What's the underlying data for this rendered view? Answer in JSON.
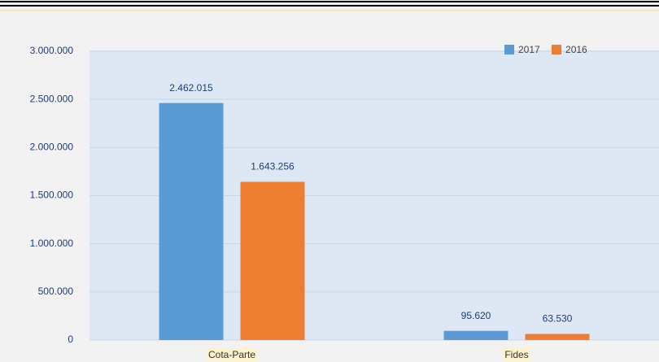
{
  "chart_data": {
    "type": "bar",
    "categories": [
      "Cota-Parte",
      "Fides"
    ],
    "series": [
      {
        "name": "2017",
        "color": "#5b9bd5",
        "values": [
          2462015,
          95620
        ],
        "value_labels": [
          "2.462.015",
          "95.620"
        ]
      },
      {
        "name": "2016",
        "color": "#ed7d31",
        "values": [
          1643256,
          63530
        ],
        "value_labels": [
          "1.643.256",
          "63.530"
        ]
      }
    ],
    "ylim": [
      0,
      3000000
    ],
    "yticks": [
      0,
      {
        "value": 500000,
        "label": "500.000"
      },
      {
        "value": 1000000,
        "label": "1.000.000"
      },
      {
        "value": 1500000,
        "label": "1.500.000"
      },
      {
        "value": 2000000,
        "label": "2.000.000"
      },
      {
        "value": 2500000,
        "label": "2.500.000"
      },
      {
        "value": 3000000,
        "label": "3.000.000"
      }
    ],
    "grid": true,
    "legend": "top-right"
  }
}
